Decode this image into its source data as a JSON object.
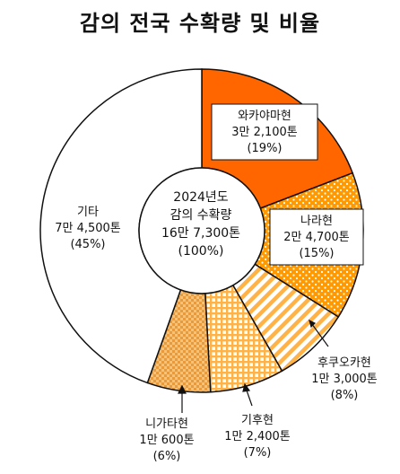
{
  "title": "감의 전국 수확량 및 비율",
  "center_label": [
    "2024년도",
    "감의 수확량",
    "16만 7,300톤",
    "(100%)"
  ],
  "chart_data": {
    "type": "pie",
    "title": "감의 전국 수확량 및 비율",
    "total": {
      "year": "2024년도",
      "name": "감의 수확량",
      "amount": "16만 7,300톤",
      "percent": "(100%)"
    },
    "slices": [
      {
        "name": "와카야마현",
        "amount": "3만 2,100톤",
        "pct_label": "(19%)",
        "value": 32100,
        "percent": 19,
        "color": "#FF6600",
        "pattern": "solid"
      },
      {
        "name": "나라현",
        "amount": "2만 4,700톤",
        "pct_label": "(15%)",
        "value": 24700,
        "percent": 15,
        "color": "#FF9900",
        "pattern": "dots"
      },
      {
        "name": "후쿠오카현",
        "amount": "1만 3,000톤",
        "pct_label": "(8%)",
        "value": 13000,
        "percent": 8,
        "color": "#FFB347",
        "pattern": "diagonal"
      },
      {
        "name": "기후현",
        "amount": "1만 2,400톤",
        "pct_label": "(7%)",
        "value": 12400,
        "percent": 7,
        "color": "#FFB347",
        "pattern": "grid"
      },
      {
        "name": "니가타현",
        "amount": "1만 600톤",
        "pct_label": "(6%)",
        "value": 10600,
        "percent": 6,
        "color": "#F0A040",
        "pattern": "check"
      },
      {
        "name": "기타",
        "amount": "7만 4,500톤",
        "pct_label": "(45%)",
        "value": 74500,
        "percent": 45,
        "color": "#FFFFFF",
        "pattern": "none"
      }
    ]
  }
}
